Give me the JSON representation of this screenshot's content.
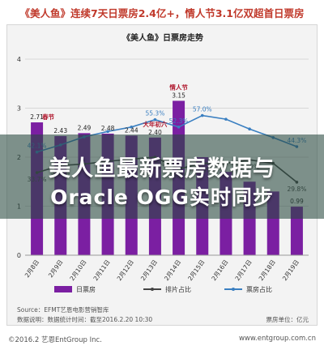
{
  "headline": "《美人鱼》连续7天日票房2.4亿+，情人节3.1亿双超首日票房",
  "overlay": {
    "line1": "美人鱼最新票房数据与",
    "line2": "Oracle OGG实时同步"
  },
  "source": {
    "line1": "Source：EFMT艺恩电影营销智库",
    "line2": "数据说明：数据统计时间：截至2016.2.20 10:30",
    "unit": "票房单位：亿元"
  },
  "footer": {
    "left": "©2016.2 艺恩EntGroup Inc.",
    "right": "www.entgroup.com.cn"
  },
  "colors": {
    "bar": "#7b1fa2",
    "line_share": "#444444",
    "line_ratio": "#3a7fc1",
    "annotation": "#b0182e"
  },
  "chart_data": {
    "type": "bar",
    "title": "《美人鱼》日票房走势",
    "categories": [
      "2月8日",
      "2月9日",
      "2月10日",
      "2月11日",
      "2月12日",
      "2月13日",
      "2月14日",
      "2月15日",
      "2月16日",
      "2月17日",
      "2月18日",
      "2月19日"
    ],
    "ylim": [
      0,
      4
    ],
    "yticks": [
      "0",
      "1",
      "2",
      "3",
      "4"
    ],
    "series": [
      {
        "name": "日票房",
        "type": "bar",
        "values": [
          2.71,
          2.43,
          2.49,
          2.48,
          2.44,
          2.4,
          3.15,
          2.0,
          1.7,
          1.5,
          1.3,
          0.99
        ],
        "labels": [
          "2.71",
          "2.43",
          "2.49",
          "2.48",
          "2.44",
          "2.40",
          "3.15",
          "",
          "",
          "",
          "",
          "0.99"
        ]
      },
      {
        "name": "排片占比",
        "type": "line",
        "values": [
          33.7,
          36.6,
          37.2,
          38.3,
          39.2,
          40.0,
          35.2,
          37.5,
          37.5,
          38.9,
          37.5,
          29.8
        ],
        "labels": [
          "33.7%",
          "36.6%",
          "",
          "",
          "",
          "40.0%",
          "35.2%",
          "37.5%",
          "",
          "38.9%",
          "",
          "29.8%"
        ]
      },
      {
        "name": "票房占比",
        "type": "line",
        "values": [
          42.1,
          45.0,
          48.3,
          50.5,
          52.3,
          55.3,
          52.3,
          57.0,
          55.5,
          51.5,
          48.0,
          44.3
        ],
        "labels": [
          "42.1%",
          "",
          "",
          "",
          "",
          "55.3%",
          "52.3%",
          "57.0%",
          "",
          "",
          "",
          "44.3%"
        ]
      }
    ],
    "annotations": [
      {
        "category": "2月8日",
        "text": "春节"
      },
      {
        "category": "2月13日",
        "text": "大年初六"
      },
      {
        "category": "2月14日",
        "text": "情人节"
      }
    ]
  }
}
